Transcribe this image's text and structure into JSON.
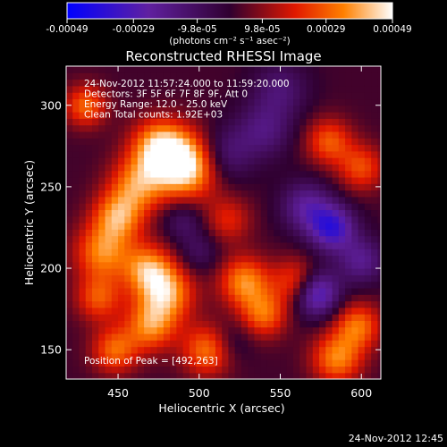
{
  "chart_data": {
    "type": "heatmap",
    "title": "Reconstructed RHESSI Image",
    "xlabel": "Heliocentric X (arcsec)",
    "ylabel": "Heliocentric Y (arcsec)",
    "xlim": [
      418,
      612
    ],
    "ylim": [
      132,
      324
    ],
    "x_ticks": [
      450,
      500,
      550,
      600
    ],
    "y_ticks": [
      150,
      200,
      250,
      300
    ],
    "colorbar": {
      "min": -0.00049,
      "max": 0.00049,
      "tick_values": [
        -0.00049,
        -0.00029,
        -9.8e-05,
        9.8e-05,
        0.00029,
        0.00049
      ],
      "tick_labels": [
        "-0.00049",
        "-0.00029",
        "-9.8e-05",
        "9.8e-05",
        "0.00029",
        "0.00049"
      ],
      "unit_label": "(photons cm⁻² s⁻¹ asec⁻²)"
    },
    "annotations": [
      "24-Nov-2012 11:57:24.000 to 11:59:20.000",
      "Detectors: 3F 5F 6F 7F 8F 9F, Att 0",
      "Energy Range: 12.0 - 25.0 keV",
      "Clean     Total counts: 1.92E+03"
    ],
    "peak": {
      "label": "Position of Peak = [492,263]",
      "x": 492,
      "y": 263
    },
    "grid": false,
    "intensity_field": {
      "note_units": "photons cm^-2 s^-1 asec^-2",
      "sources": [
        {
          "x": 492,
          "y": 263,
          "v": 0.00049,
          "w": 14
        },
        {
          "x": 475,
          "y": 275,
          "v": 0.00036,
          "w": 12
        },
        {
          "x": 462,
          "y": 252,
          "v": 0.0003,
          "w": 12
        },
        {
          "x": 450,
          "y": 232,
          "v": 0.00033,
          "w": 11
        },
        {
          "x": 440,
          "y": 210,
          "v": 0.00031,
          "w": 12
        },
        {
          "x": 468,
          "y": 200,
          "v": 0.00032,
          "w": 11
        },
        {
          "x": 480,
          "y": 185,
          "v": 0.00035,
          "w": 12
        },
        {
          "x": 470,
          "y": 165,
          "v": 0.00031,
          "w": 11
        },
        {
          "x": 448,
          "y": 150,
          "v": 0.00028,
          "w": 10
        },
        {
          "x": 505,
          "y": 150,
          "v": 0.0003,
          "w": 11
        },
        {
          "x": 528,
          "y": 192,
          "v": 0.00033,
          "w": 11
        },
        {
          "x": 540,
          "y": 172,
          "v": 0.00028,
          "w": 10
        },
        {
          "x": 560,
          "y": 192,
          "v": 0.00026,
          "w": 10
        },
        {
          "x": 585,
          "y": 145,
          "v": 0.00032,
          "w": 11
        },
        {
          "x": 598,
          "y": 165,
          "v": 0.00029,
          "w": 10
        },
        {
          "x": 580,
          "y": 278,
          "v": 0.00026,
          "w": 10
        },
        {
          "x": 600,
          "y": 262,
          "v": 0.00024,
          "w": 10
        },
        {
          "x": 430,
          "y": 300,
          "v": 0.00028,
          "w": 9
        },
        {
          "x": 438,
          "y": 182,
          "v": 0.00025,
          "w": 10
        },
        {
          "x": 518,
          "y": 230,
          "v": 0.00018,
          "w": 10
        },
        {
          "x": 566,
          "y": 238,
          "v": -0.00024,
          "w": 11
        },
        {
          "x": 582,
          "y": 225,
          "v": -0.00036,
          "w": 10
        },
        {
          "x": 572,
          "y": 185,
          "v": -0.00038,
          "w": 10
        },
        {
          "x": 515,
          "y": 270,
          "v": -0.0002,
          "w": 12
        },
        {
          "x": 540,
          "y": 285,
          "v": -0.00018,
          "w": 12
        },
        {
          "x": 490,
          "y": 230,
          "v": -0.00014,
          "w": 9
        },
        {
          "x": 550,
          "y": 310,
          "v": -0.00016,
          "w": 12
        },
        {
          "x": 600,
          "y": 205,
          "v": -0.00022,
          "w": 10
        },
        {
          "x": 520,
          "y": 155,
          "v": -0.0001,
          "w": 9
        },
        {
          "x": 500,
          "y": 210,
          "v": -0.00012,
          "w": 9
        }
      ]
    }
  },
  "footer": {
    "timestamp": "24-Nov-2012 12:45"
  }
}
